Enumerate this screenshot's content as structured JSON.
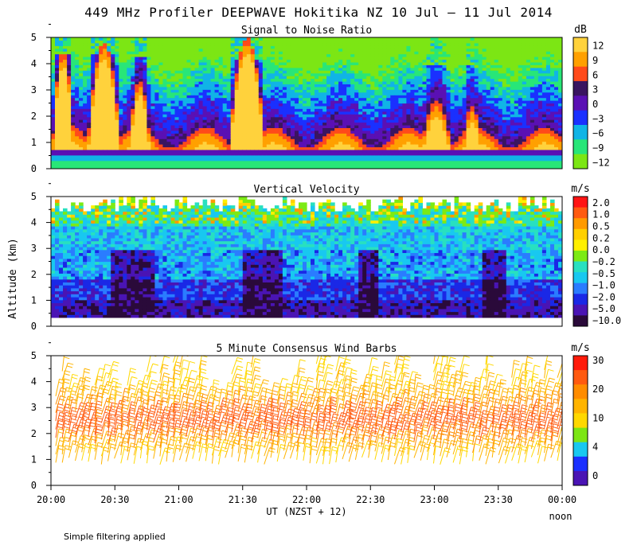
{
  "title": "449 MHz Profiler DEEPWAVE Hokitika NZ 10 Jul – 11 Jul 2014",
  "ylabel": "Altitude (km)",
  "xlabel": "UT  (NZST + 12)",
  "x_extra_label": "noon",
  "footnote": "Simple filtering applied",
  "chart_data": [
    {
      "type": "heatmap",
      "title": "Signal to Noise Ratio",
      "units": "dB",
      "ylim": [
        0,
        5
      ],
      "yticks": [
        "0",
        "1",
        "2",
        "3",
        "4",
        "5"
      ],
      "x_range": [
        "20:00",
        "00:00"
      ],
      "colorbar": {
        "labels": [
          "12",
          "9",
          "6",
          "3",
          "0",
          "−3",
          "−6",
          "−9",
          "−12"
        ],
        "colors": [
          "#ffd23c",
          "#ffa000",
          "#ff4a1a",
          "#3a1560",
          "#5a10b4",
          "#1a30ff",
          "#10b4e6",
          "#28e678",
          "#7ce614"
        ]
      }
    },
    {
      "type": "heatmap",
      "title": "Vertical Velocity",
      "units": "m/s",
      "ylim": [
        0,
        5
      ],
      "yticks": [
        "0",
        "1",
        "2",
        "3",
        "4",
        "5"
      ],
      "x_range": [
        "20:00",
        "00:00"
      ],
      "colorbar": {
        "labels": [
          "2.0",
          "1.0",
          "0.5",
          "0.2",
          "0.0",
          "−0.2",
          "−0.5",
          "−1.0",
          "−2.0",
          "−5.0",
          "−10.0"
        ],
        "colors": [
          "#ff1414",
          "#ff5a10",
          "#ff9a00",
          "#ffd000",
          "#fff000",
          "#7cea14",
          "#28e0c0",
          "#18c8f0",
          "#2a7cff",
          "#1a28e6",
          "#4a14b4",
          "#2a0a3a"
        ]
      }
    },
    {
      "type": "scatter",
      "title": "5 Minute Consensus Wind Barbs",
      "units": "m/s",
      "ylim": [
        0,
        5
      ],
      "yticks": [
        "0",
        "1",
        "2",
        "3",
        "4",
        "5"
      ],
      "x_range": [
        "20:00",
        "00:00"
      ],
      "xticks": [
        "20:00",
        "20:30",
        "21:00",
        "21:30",
        "22:00",
        "22:30",
        "23:00",
        "23:30",
        "00:00"
      ],
      "colorbar": {
        "labels": [
          "30",
          "20",
          "10",
          "4",
          "0"
        ],
        "colors": [
          "#ff1a0a",
          "#ff5a10",
          "#ff8c00",
          "#ffb400",
          "#ffd800",
          "#7ce614",
          "#18c8f0",
          "#1a30ff",
          "#4a14b4"
        ]
      }
    }
  ]
}
